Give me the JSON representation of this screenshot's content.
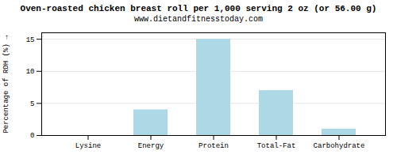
{
  "chart_data": {
    "type": "bar",
    "title": "Oven-roasted chicken breast roll per 1,000 serving 2 oz (or 56.00 g)",
    "subtitle": "www.dietandfitnesstoday.com",
    "categories": [
      "Lysine",
      "Energy",
      "Protein",
      "Total-Fat",
      "Carbohydrate"
    ],
    "values": [
      0.0,
      4.0,
      15.0,
      7.0,
      1.0
    ],
    "color": "#add8e6",
    "ylabel": "Percentage of RDH (%)",
    "ylim": [
      0,
      16
    ],
    "yticks": [
      0,
      5,
      10,
      15
    ],
    "grid": true
  }
}
